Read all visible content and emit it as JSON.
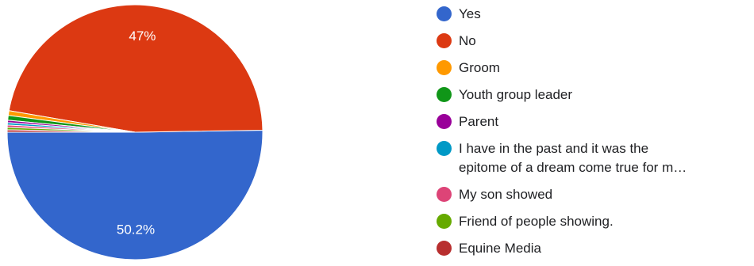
{
  "chart_data": {
    "type": "pie",
    "slices": [
      {
        "label": "Yes",
        "value": 50.2,
        "color": "#3366cc",
        "data_label": "50.2%"
      },
      {
        "label": "No",
        "value": 47,
        "color": "#dc3912",
        "data_label": "47%"
      },
      {
        "label": "Groom",
        "value": 0.6,
        "color": "#ff9900",
        "data_label": ""
      },
      {
        "label": "Youth group leader",
        "value": 0.6,
        "color": "#109618",
        "data_label": ""
      },
      {
        "label": "Parent",
        "value": 0.3,
        "color": "#990099",
        "data_label": ""
      },
      {
        "label": "I have in the past and it was the\nepitome of a dream come true for m…",
        "value": 0.3,
        "color": "#0099c6",
        "data_label": ""
      },
      {
        "label": "My son showed",
        "value": 0.3,
        "color": "#dd4477",
        "data_label": ""
      },
      {
        "label": "Friend of people showing.",
        "value": 0.3,
        "color": "#66aa00",
        "data_label": ""
      },
      {
        "label": "Equine Media",
        "value": 0.3,
        "color": "#b82e2e",
        "data_label": ""
      }
    ],
    "legend_position": "right"
  }
}
